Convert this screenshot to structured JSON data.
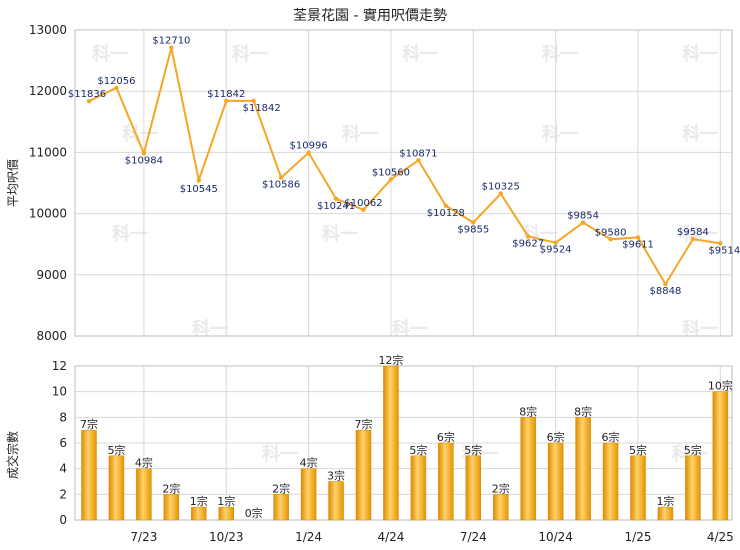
{
  "chart_data": [
    {
      "type": "line",
      "title": "荃景花園 - 實用呎價走勢",
      "ylabel": "平均呎價",
      "ylim": [
        8000,
        13000
      ],
      "yticks": [
        8000,
        9000,
        10000,
        11000,
        12000,
        13000
      ],
      "xticks": [
        "7/23",
        "10/23",
        "1/24",
        "4/24",
        "7/24",
        "10/24",
        "1/25",
        "4/25"
      ],
      "line_color": "#f5a623",
      "values": [
        11836,
        12056,
        10984,
        12710,
        10545,
        11842,
        11842,
        10586,
        10996,
        10241,
        10062,
        10560,
        10871,
        10128,
        9855,
        10325,
        9627,
        9524,
        9854,
        9580,
        9611,
        8848,
        9584,
        9514
      ],
      "labels": [
        "$11836",
        "$12056",
        "$10984",
        "$12710",
        "$10545",
        "$11842",
        "$11842",
        "$10586",
        "$10996",
        "$10241",
        "$10062",
        "$10560",
        "$10871",
        "$10128",
        "$9855",
        "$10325",
        "$9627",
        "$9524",
        "$9854",
        "$9580",
        "$9611",
        "$8848",
        "$9584",
        "$9514"
      ],
      "grid": true
    },
    {
      "type": "bar",
      "ylabel": "成交宗數",
      "ylim": [
        0,
        12
      ],
      "yticks": [
        0,
        2,
        4,
        6,
        8,
        10,
        12
      ],
      "xticks": [
        "7/23",
        "10/23",
        "1/24",
        "4/24",
        "7/24",
        "10/24",
        "1/25",
        "4/25"
      ],
      "bar_color": "#f5a623",
      "values": [
        7,
        5,
        4,
        2,
        1,
        1,
        0,
        2,
        4,
        3,
        7,
        12,
        5,
        6,
        5,
        2,
        8,
        6,
        8,
        6,
        5,
        1,
        5,
        10
      ],
      "labels": [
        "7宗",
        "5宗",
        "4宗",
        "2宗",
        "1宗",
        "1宗",
        "0宗",
        "2宗",
        "4宗",
        "3宗",
        "7宗",
        "12宗",
        "5宗",
        "6宗",
        "5宗",
        "2宗",
        "8宗",
        "6宗",
        "8宗",
        "6宗",
        "5宗",
        "1宗",
        "5宗",
        "10宗"
      ],
      "grid": true
    }
  ],
  "watermark": "科一"
}
